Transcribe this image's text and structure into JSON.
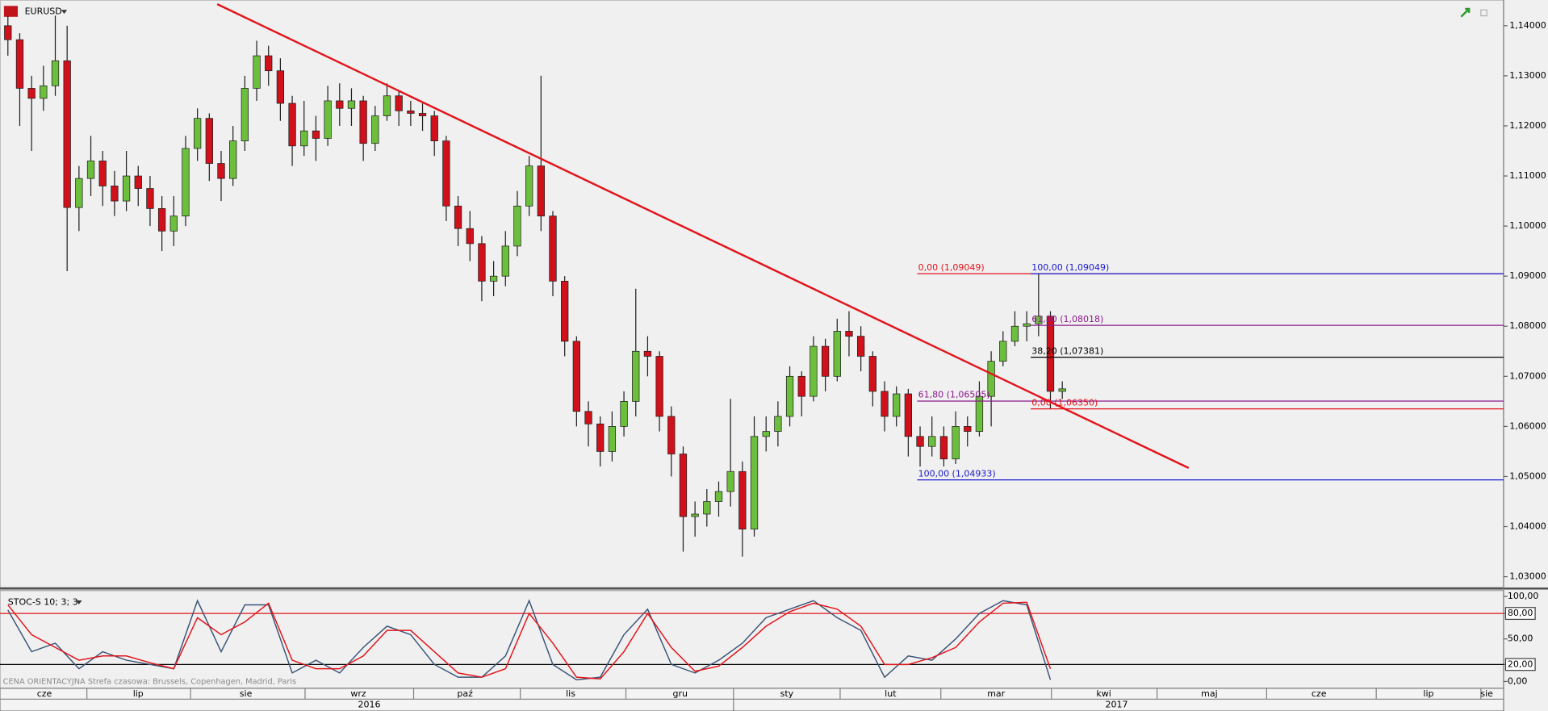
{
  "header": {
    "symbol": "EURUSD",
    "indicator": "STOC-S 10; 3; 3",
    "footer_note": "CENA ORIENTACYJNA   Strefa czasowa: Brussels, Copenhagen, Madrid, Paris"
  },
  "chart_data": [
    {
      "type": "candlestick",
      "up_color": "#6cbf3c",
      "down_color": "#d0101a",
      "ylim": [
        1.02783,
        1.14513
      ],
      "yticks": [
        {
          "value": 1.03,
          "label": "1,03000"
        },
        {
          "value": 1.04,
          "label": "1,04000"
        },
        {
          "value": 1.05,
          "label": "1,05000"
        },
        {
          "value": 1.06,
          "label": "1,06000"
        },
        {
          "value": 1.07,
          "label": "1,07000"
        },
        {
          "value": 1.08,
          "label": "1,08000"
        },
        {
          "value": 1.09,
          "label": "1,09000"
        },
        {
          "value": 1.1,
          "label": "1,10000"
        },
        {
          "value": 1.11,
          "label": "1,11000"
        },
        {
          "value": 1.12,
          "label": "1,12000"
        },
        {
          "value": 1.13,
          "label": "1,13000"
        },
        {
          "value": 1.14,
          "label": "1,14000"
        }
      ],
      "ohlc": [
        [
          1.14,
          1.142,
          1.134,
          1.1372
        ],
        [
          1.1372,
          1.1385,
          1.12,
          1.1275
        ],
        [
          1.1275,
          1.13,
          1.115,
          1.1255
        ],
        [
          1.1255,
          1.132,
          1.123,
          1.128
        ],
        [
          1.128,
          1.142,
          1.126,
          1.133
        ],
        [
          1.133,
          1.14,
          1.091,
          1.1037
        ],
        [
          1.1037,
          1.112,
          1.099,
          1.1095
        ],
        [
          1.1095,
          1.118,
          1.106,
          1.113
        ],
        [
          1.113,
          1.115,
          1.104,
          1.108
        ],
        [
          1.108,
          1.111,
          1.102,
          1.105
        ],
        [
          1.105,
          1.115,
          1.103,
          1.11
        ],
        [
          1.11,
          1.112,
          1.104,
          1.1075
        ],
        [
          1.1075,
          1.11,
          1.1,
          1.1035
        ],
        [
          1.1035,
          1.106,
          1.095,
          1.099
        ],
        [
          1.099,
          1.106,
          1.096,
          1.102
        ],
        [
          1.102,
          1.118,
          1.1,
          1.1155
        ],
        [
          1.1155,
          1.1235,
          1.113,
          1.1215
        ],
        [
          1.1215,
          1.1225,
          1.109,
          1.1125
        ],
        [
          1.1125,
          1.115,
          1.105,
          1.1095
        ],
        [
          1.1095,
          1.12,
          1.108,
          1.117
        ],
        [
          1.117,
          1.13,
          1.115,
          1.1275
        ],
        [
          1.1275,
          1.137,
          1.125,
          1.134
        ],
        [
          1.134,
          1.136,
          1.128,
          1.131
        ],
        [
          1.131,
          1.1335,
          1.121,
          1.1245
        ],
        [
          1.1245,
          1.126,
          1.112,
          1.116
        ],
        [
          1.116,
          1.125,
          1.114,
          1.119
        ],
        [
          1.119,
          1.122,
          1.113,
          1.1175
        ],
        [
          1.1175,
          1.128,
          1.116,
          1.125
        ],
        [
          1.125,
          1.1285,
          1.12,
          1.1235
        ],
        [
          1.1235,
          1.1275,
          1.12,
          1.125
        ],
        [
          1.125,
          1.126,
          1.113,
          1.1165
        ],
        [
          1.1165,
          1.124,
          1.115,
          1.122
        ],
        [
          1.122,
          1.1285,
          1.121,
          1.126
        ],
        [
          1.126,
          1.127,
          1.12,
          1.123
        ],
        [
          1.123,
          1.125,
          1.12,
          1.1225
        ],
        [
          1.1225,
          1.1245,
          1.119,
          1.122
        ],
        [
          1.122,
          1.123,
          1.114,
          1.117
        ],
        [
          1.117,
          1.118,
          1.101,
          1.104
        ],
        [
          1.104,
          1.106,
          1.096,
          1.0995
        ],
        [
          1.0995,
          1.103,
          1.093,
          1.0965
        ],
        [
          1.0965,
          1.098,
          1.085,
          1.089
        ],
        [
          1.089,
          1.093,
          1.086,
          1.09
        ],
        [
          1.09,
          1.099,
          1.088,
          1.096
        ],
        [
          1.096,
          1.107,
          1.094,
          1.104
        ],
        [
          1.104,
          1.114,
          1.102,
          1.112
        ],
        [
          1.112,
          1.13,
          1.099,
          1.102
        ],
        [
          1.102,
          1.103,
          1.086,
          1.089
        ],
        [
          1.089,
          1.09,
          1.074,
          1.077
        ],
        [
          1.077,
          1.078,
          1.06,
          1.063
        ],
        [
          1.063,
          1.065,
          1.056,
          1.0605
        ],
        [
          1.0605,
          1.062,
          1.052,
          1.055
        ],
        [
          1.055,
          1.063,
          1.053,
          1.06
        ],
        [
          1.06,
          1.067,
          1.058,
          1.065
        ],
        [
          1.065,
          1.0875,
          1.062,
          1.075
        ],
        [
          1.075,
          1.078,
          1.07,
          1.074
        ],
        [
          1.074,
          1.075,
          1.059,
          1.062
        ],
        [
          1.062,
          1.064,
          1.05,
          1.0545
        ],
        [
          1.0545,
          1.056,
          1.035,
          1.042
        ],
        [
          1.042,
          1.045,
          1.038,
          1.0425
        ],
        [
          1.0425,
          1.0475,
          1.04,
          1.045
        ],
        [
          1.045,
          1.049,
          1.042,
          1.047
        ],
        [
          1.047,
          1.0655,
          1.044,
          1.051
        ],
        [
          1.051,
          1.053,
          1.034,
          1.0395
        ],
        [
          1.0395,
          1.062,
          1.038,
          1.058
        ],
        [
          1.058,
          1.062,
          1.055,
          1.059
        ],
        [
          1.059,
          1.065,
          1.056,
          1.062
        ],
        [
          1.062,
          1.072,
          1.06,
          1.07
        ],
        [
          1.07,
          1.071,
          1.062,
          1.066
        ],
        [
          1.066,
          1.078,
          1.065,
          1.076
        ],
        [
          1.076,
          1.0775,
          1.067,
          1.07
        ],
        [
          1.07,
          1.0815,
          1.069,
          1.079
        ],
        [
          1.079,
          1.083,
          1.074,
          1.078
        ],
        [
          1.078,
          1.08,
          1.071,
          1.074
        ],
        [
          1.074,
          1.075,
          1.064,
          1.067
        ],
        [
          1.067,
          1.069,
          1.059,
          1.062
        ],
        [
          1.062,
          1.068,
          1.06,
          1.0665
        ],
        [
          1.0665,
          1.0675,
          1.054,
          1.058
        ],
        [
          1.058,
          1.06,
          1.052,
          1.056
        ],
        [
          1.056,
          1.062,
          1.054,
          1.058
        ],
        [
          1.058,
          1.06,
          1.052,
          1.0535
        ],
        [
          1.0535,
          1.063,
          1.0525,
          1.06
        ],
        [
          1.06,
          1.062,
          1.056,
          1.059
        ],
        [
          1.059,
          1.069,
          1.058,
          1.066
        ],
        [
          1.066,
          1.075,
          1.06,
          1.073
        ],
        [
          1.073,
          1.079,
          1.072,
          1.077
        ],
        [
          1.077,
          1.083,
          1.076,
          1.08
        ],
        [
          1.08,
          1.083,
          1.077,
          1.0805
        ],
        [
          1.0805,
          1.0905,
          1.078,
          1.082
        ],
        [
          1.082,
          1.083,
          1.0635,
          1.067
        ],
        [
          1.067,
          1.069,
          1.0655,
          1.0675
        ]
      ],
      "trendline": {
        "color": "#e3141b",
        "values": [
          1.1443,
          1.0517
        ]
      },
      "fibonacci": [
        [
          {
            "label": "0,00 (1,09049)",
            "value": 1.09049,
            "color": "#e3141b"
          },
          {
            "label": "61,80 (1,06505)",
            "value": 1.06505,
            "color": "#8b1a8b"
          },
          {
            "label": "100,00 (1,04933)",
            "value": 1.04933,
            "color": "#1a1acc"
          }
        ],
        [
          {
            "label": "100,00 (1,09049)",
            "value": 1.09049,
            "color": "#1a1acc"
          },
          {
            "label": "61,80 (1,08018)",
            "value": 1.08018,
            "color": "#8b1a8b"
          },
          {
            "label": "38,20 (1,07381)",
            "value": 1.07381,
            "color": "#000000"
          },
          {
            "label": "0,00 (1,06350)",
            "value": 1.0635,
            "color": "#e3141b"
          }
        ]
      ]
    },
    {
      "type": "line",
      "ylim": [
        -8,
        106.9
      ],
      "yticks": [
        {
          "value": 0,
          "label": "0,00"
        },
        {
          "value": 20,
          "label": "20,00"
        },
        {
          "value": 50,
          "label": "50,00"
        },
        {
          "value": 80,
          "label": "80,00"
        },
        {
          "value": 100,
          "label": "100,00"
        }
      ],
      "level_lines": [
        {
          "value": 80,
          "color": "#e3141b"
        },
        {
          "value": 20,
          "color": "#000000"
        }
      ],
      "series": [
        {
          "color": "#3a5577",
          "values": [
            84,
            35,
            45,
            15,
            35,
            25,
            20,
            15,
            95,
            35,
            90,
            90,
            10,
            25,
            10,
            40,
            65,
            55,
            20,
            5,
            5,
            30,
            95,
            20,
            2,
            5,
            55,
            85,
            20,
            10,
            25,
            45,
            75,
            85,
            95,
            75,
            60,
            5,
            30,
            25,
            50,
            80,
            95,
            90,
            2
          ]
        },
        {
          "color": "#e3141b",
          "values": [
            90,
            55,
            40,
            25,
            30,
            30,
            22,
            15,
            75,
            55,
            70,
            92,
            25,
            15,
            15,
            30,
            60,
            60,
            35,
            10,
            5,
            15,
            80,
            45,
            5,
            3,
            35,
            80,
            40,
            12,
            18,
            40,
            65,
            82,
            92,
            85,
            65,
            20,
            20,
            28,
            40,
            70,
            92,
            93,
            15
          ]
        }
      ]
    }
  ],
  "x_axis": {
    "months": [
      "cze",
      "lip",
      "sie",
      "wrz",
      "paź",
      "lis",
      "gru",
      "sty",
      "lut",
      "mar",
      "kwi",
      "maj",
      "cze",
      "lip",
      "sie"
    ],
    "years": [
      "2016",
      "2017"
    ]
  }
}
